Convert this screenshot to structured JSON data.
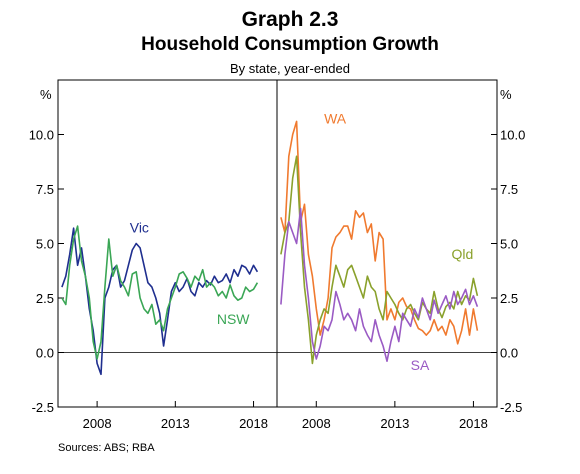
{
  "title": "Graph 2.3",
  "subtitle": "Household Consumption Growth",
  "caption": "By state, year-ended",
  "source": "Sources: ABS; RBA",
  "chart_data": {
    "type": "line",
    "y_unit": "%",
    "ylim": [
      -2.5,
      12.5
    ],
    "yticks": [
      -2.5,
      0.0,
      2.5,
      5.0,
      7.5,
      10.0
    ],
    "ytick_labels": [
      "-2.5",
      "0.0",
      "2.5",
      "5.0",
      "7.5",
      "10.0"
    ],
    "xlim": [
      2005.5,
      2019.5
    ],
    "xticks": [
      2008,
      2013,
      2018
    ],
    "xtick_labels": [
      "2008",
      "2013",
      "2018"
    ],
    "grid": false,
    "panels": [
      {
        "series": [
          {
            "name": "Vic",
            "color": "#1f2f8f",
            "x": [
              2005.75,
              2006,
              2006.25,
              2006.5,
              2006.75,
              2007,
              2007.25,
              2007.5,
              2007.75,
              2008,
              2008.25,
              2008.5,
              2008.75,
              2009,
              2009.25,
              2009.5,
              2009.75,
              2010,
              2010.25,
              2010.5,
              2010.75,
              2011,
              2011.25,
              2011.5,
              2011.75,
              2012,
              2012.25,
              2012.5,
              2012.75,
              2013,
              2013.25,
              2013.5,
              2013.75,
              2014,
              2014.25,
              2014.5,
              2014.75,
              2015,
              2015.25,
              2015.5,
              2015.75,
              2016,
              2016.25,
              2016.5,
              2016.75,
              2017,
              2017.25,
              2017.5,
              2017.75,
              2018,
              2018.25
            ],
            "values": [
              3.0,
              3.5,
              4.5,
              5.7,
              4.0,
              4.8,
              3.5,
              2.0,
              1.0,
              -0.5,
              -1.0,
              2.5,
              3.0,
              3.8,
              4.0,
              3.0,
              3.3,
              4.0,
              4.7,
              5.0,
              4.8,
              4.0,
              3.2,
              3.0,
              2.5,
              1.8,
              0.3,
              1.5,
              2.8,
              3.2,
              2.8,
              3.0,
              3.4,
              2.8,
              2.6,
              3.2,
              3.0,
              3.3,
              3.1,
              3.5,
              3.2,
              3.3,
              3.6,
              3.2,
              3.8,
              3.5,
              4.0,
              3.9,
              3.6,
              4.0,
              3.7
            ]
          },
          {
            "name": "NSW",
            "color": "#3aa655",
            "x": [
              2005.75,
              2006,
              2006.25,
              2006.5,
              2006.75,
              2007,
              2007.25,
              2007.5,
              2007.75,
              2008,
              2008.25,
              2008.5,
              2008.75,
              2009,
              2009.25,
              2009.5,
              2009.75,
              2010,
              2010.25,
              2010.5,
              2010.75,
              2011,
              2011.25,
              2011.5,
              2011.75,
              2012,
              2012.25,
              2012.5,
              2012.75,
              2013,
              2013.25,
              2013.5,
              2013.75,
              2014,
              2014.25,
              2014.5,
              2014.75,
              2015,
              2015.25,
              2015.5,
              2015.75,
              2016,
              2016.25,
              2016.5,
              2016.75,
              2017,
              2017.25,
              2017.5,
              2017.75,
              2018,
              2018.25
            ],
            "values": [
              2.5,
              2.2,
              4.0,
              5.2,
              5.8,
              4.2,
              3.5,
              2.5,
              0.5,
              -0.3,
              0.5,
              3.0,
              5.2,
              3.5,
              4.0,
              3.3,
              3.0,
              2.6,
              3.6,
              3.7,
              2.5,
              2.0,
              1.8,
              2.2,
              1.3,
              1.5,
              1.0,
              2.0,
              2.5,
              3.0,
              3.6,
              3.7,
              3.4,
              3.0,
              3.5,
              3.3,
              3.8,
              3.0,
              3.2,
              3.0,
              2.6,
              2.8,
              2.5,
              3.1,
              2.6,
              2.4,
              2.5,
              3.0,
              2.8,
              2.9,
              3.2
            ]
          }
        ],
        "annotations": [
          {
            "text": "Vic",
            "series": "Vic",
            "x": 2010.7,
            "y": 5.5
          },
          {
            "text": "NSW",
            "series": "NSW",
            "x": 2016.7,
            "y": 1.3
          }
        ]
      },
      {
        "series": [
          {
            "name": "WA",
            "color": "#f07a2f",
            "x": [
              2005.75,
              2006,
              2006.25,
              2006.5,
              2006.75,
              2007,
              2007.25,
              2007.5,
              2007.75,
              2008,
              2008.25,
              2008.5,
              2008.75,
              2009,
              2009.25,
              2009.5,
              2009.75,
              2010,
              2010.25,
              2010.5,
              2010.75,
              2011,
              2011.25,
              2011.5,
              2011.75,
              2012,
              2012.25,
              2012.5,
              2012.75,
              2013,
              2013.25,
              2013.5,
              2013.75,
              2014,
              2014.25,
              2014.5,
              2014.75,
              2015,
              2015.25,
              2015.5,
              2015.75,
              2016,
              2016.25,
              2016.5,
              2016.75,
              2017,
              2017.25,
              2017.5,
              2017.75,
              2018,
              2018.25
            ],
            "values": [
              6.2,
              5.5,
              9.0,
              10.0,
              10.6,
              6.0,
              6.8,
              4.5,
              3.5,
              2.0,
              0.8,
              1.5,
              2.5,
              4.8,
              5.3,
              5.5,
              5.8,
              5.8,
              5.2,
              6.5,
              6.2,
              6.4,
              5.5,
              5.9,
              4.2,
              5.5,
              5.2,
              1.5,
              2.0,
              1.5,
              2.3,
              2.5,
              2.1,
              2.0,
              1.5,
              1.1,
              1.0,
              0.8,
              1.0,
              1.5,
              1.0,
              1.2,
              0.8,
              1.5,
              1.2,
              0.4,
              1.0,
              2.0,
              0.8,
              2.0,
              1.0
            ]
          },
          {
            "name": "Qld",
            "color": "#8aa12c",
            "x": [
              2005.75,
              2006,
              2006.25,
              2006.5,
              2006.75,
              2007,
              2007.25,
              2007.5,
              2007.75,
              2008,
              2008.25,
              2008.5,
              2008.75,
              2009,
              2009.25,
              2009.5,
              2009.75,
              2010,
              2010.25,
              2010.5,
              2010.75,
              2011,
              2011.25,
              2011.5,
              2011.75,
              2012,
              2012.25,
              2012.5,
              2012.75,
              2013,
              2013.25,
              2013.5,
              2013.75,
              2014,
              2014.25,
              2014.5,
              2014.75,
              2015,
              2015.25,
              2015.5,
              2015.75,
              2016,
              2016.25,
              2016.5,
              2016.75,
              2017,
              2017.25,
              2017.5,
              2017.75,
              2018,
              2018.25
            ],
            "values": [
              4.5,
              5.5,
              6.0,
              8.0,
              9.0,
              5.5,
              3.0,
              1.5,
              -0.5,
              0.8,
              1.5,
              2.0,
              1.8,
              3.0,
              4.0,
              3.5,
              3.0,
              3.8,
              4.0,
              3.5,
              3.0,
              2.5,
              3.5,
              3.0,
              2.8,
              2.0,
              1.5,
              2.8,
              2.5,
              2.2,
              1.8,
              1.5,
              2.0,
              2.2,
              1.8,
              1.5,
              2.3,
              2.0,
              1.8,
              2.8,
              2.0,
              1.6,
              2.1,
              2.3,
              2.0,
              2.8,
              2.2,
              2.6,
              2.4,
              3.4,
              2.6
            ]
          },
          {
            "name": "SA",
            "color": "#9a5bc4",
            "x": [
              2005.75,
              2006,
              2006.25,
              2006.5,
              2006.75,
              2007,
              2007.25,
              2007.5,
              2007.75,
              2008,
              2008.25,
              2008.5,
              2008.75,
              2009,
              2009.25,
              2009.5,
              2009.75,
              2010,
              2010.25,
              2010.5,
              2010.75,
              2011,
              2011.25,
              2011.5,
              2011.75,
              2012,
              2012.25,
              2012.5,
              2012.75,
              2013,
              2013.25,
              2013.5,
              2013.75,
              2014,
              2014.25,
              2014.5,
              2014.75,
              2015,
              2015.25,
              2015.5,
              2015.75,
              2016,
              2016.25,
              2016.5,
              2016.75,
              2017,
              2017.25,
              2017.5,
              2017.75,
              2018,
              2018.25
            ],
            "values": [
              2.2,
              4.5,
              6.0,
              5.5,
              5.0,
              6.6,
              4.0,
              2.5,
              0.5,
              -0.3,
              0.3,
              1.2,
              1.0,
              1.5,
              2.8,
              2.2,
              1.5,
              1.8,
              1.5,
              1.0,
              2.0,
              1.2,
              0.8,
              0.5,
              1.5,
              0.8,
              0.3,
              -0.4,
              0.5,
              1.2,
              0.5,
              1.8,
              1.5,
              1.2,
              2.0,
              1.6,
              2.5,
              2.0,
              1.5,
              2.4,
              1.8,
              2.2,
              2.6,
              2.0,
              2.8,
              2.2,
              2.5,
              2.9,
              2.2,
              2.6,
              2.1
            ]
          }
        ],
        "annotations": [
          {
            "text": "WA",
            "series": "WA",
            "x": 2009.2,
            "y": 10.5
          },
          {
            "text": "Qld",
            "series": "Qld",
            "x": 2017.3,
            "y": 4.3
          },
          {
            "text": "SA",
            "series": "SA",
            "x": 2014.6,
            "y": -0.8
          }
        ]
      }
    ]
  }
}
